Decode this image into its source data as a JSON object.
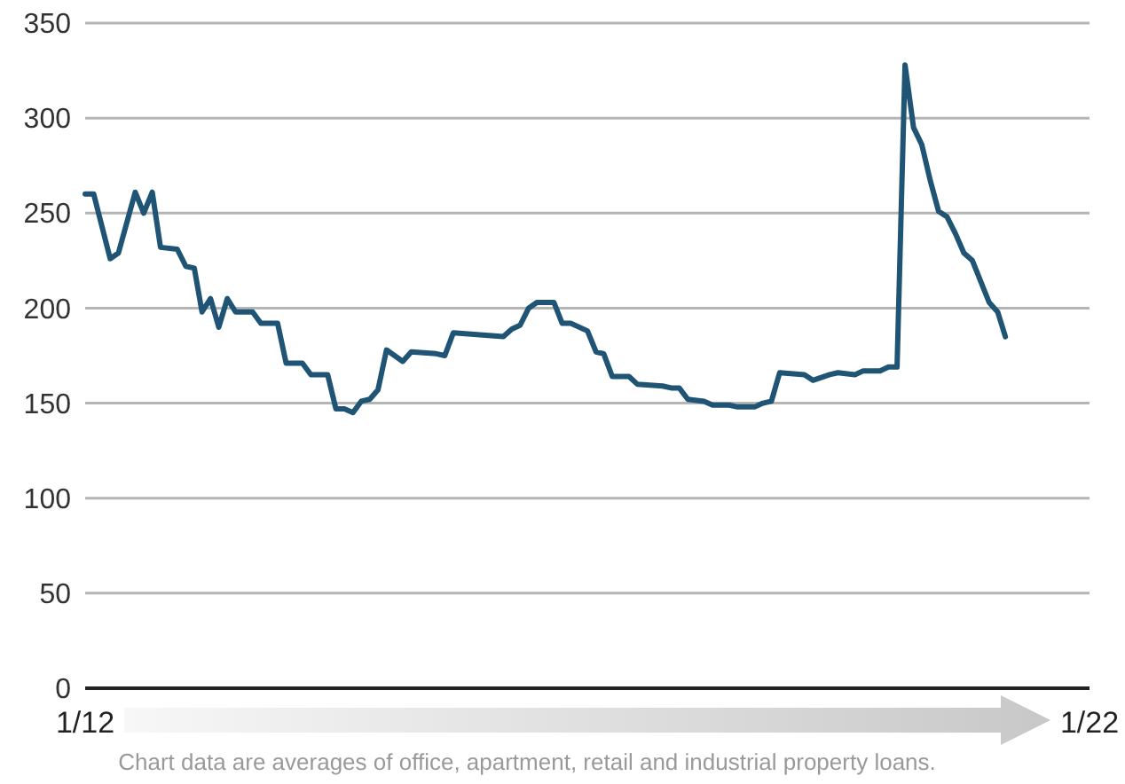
{
  "chart_data": {
    "type": "line",
    "annotations": [
      "Chart data are averages of office, apartment, retail and industrial property loans."
    ],
    "x": [
      "2012-01",
      "2012-02",
      "2012-04",
      "2012-05",
      "2012-07",
      "2012-08",
      "2012-09",
      "2012-10",
      "2012-12",
      "2013-01",
      "2013-02",
      "2013-03",
      "2013-04",
      "2013-05",
      "2013-06",
      "2013-07",
      "2013-09",
      "2013-10",
      "2013-12",
      "2014-01",
      "2014-03",
      "2014-04",
      "2014-06",
      "2014-07",
      "2014-08",
      "2014-09",
      "2014-10",
      "2014-11",
      "2014-12",
      "2015-01",
      "2015-03",
      "2015-04",
      "2015-07",
      "2015-08",
      "2015-09",
      "2016-03",
      "2016-04",
      "2016-05",
      "2016-06",
      "2016-07",
      "2016-09",
      "2016-10",
      "2016-11",
      "2017-01",
      "2017-02",
      "2017-03",
      "2017-04",
      "2017-06",
      "2017-07",
      "2017-10",
      "2017-11",
      "2017-12",
      "2018-01",
      "2018-03",
      "2018-04",
      "2018-06",
      "2018-07",
      "2018-09",
      "2018-10",
      "2018-11",
      "2018-12",
      "2019-03",
      "2019-04",
      "2019-06",
      "2019-07",
      "2019-09",
      "2019-10",
      "2019-12",
      "2020-01",
      "2020-02",
      "2020-03",
      "2020-04",
      "2020-05",
      "2020-06",
      "2020-07",
      "2020-08",
      "2020-09",
      "2020-10",
      "2020-11",
      "2021-01",
      "2021-02",
      "2021-03"
    ],
    "series": [
      {
        "color": "#1f5475",
        "values": [
          260,
          260,
          226,
          229,
          261,
          250,
          261,
          232,
          231,
          222,
          221,
          198,
          205,
          190,
          205,
          198,
          198,
          192,
          192,
          171,
          171,
          165,
          165,
          147,
          147,
          145,
          151,
          152,
          157,
          178,
          172,
          177,
          176,
          175,
          187,
          185,
          189,
          191,
          200,
          203,
          203,
          192,
          192,
          188,
          177,
          176,
          164,
          164,
          160,
          159,
          158,
          158,
          152,
          151,
          149,
          149,
          148,
          148,
          150,
          151,
          166,
          165,
          162,
          165,
          166,
          165,
          167,
          167,
          169,
          169,
          328,
          295,
          286,
          267,
          251,
          248,
          239,
          229,
          225,
          203,
          198,
          185
        ]
      }
    ],
    "xlim": [
      "2012-01",
      "2022-01"
    ],
    "xticks": [
      {
        "value": "2012-01",
        "label": "1/12"
      },
      {
        "value": "2022-01",
        "label": "1/22"
      }
    ],
    "ylim": [
      0,
      350
    ],
    "yticks": [
      0,
      50,
      100,
      150,
      200,
      250,
      300,
      350
    ],
    "grid": "y",
    "line_style": "solid"
  }
}
